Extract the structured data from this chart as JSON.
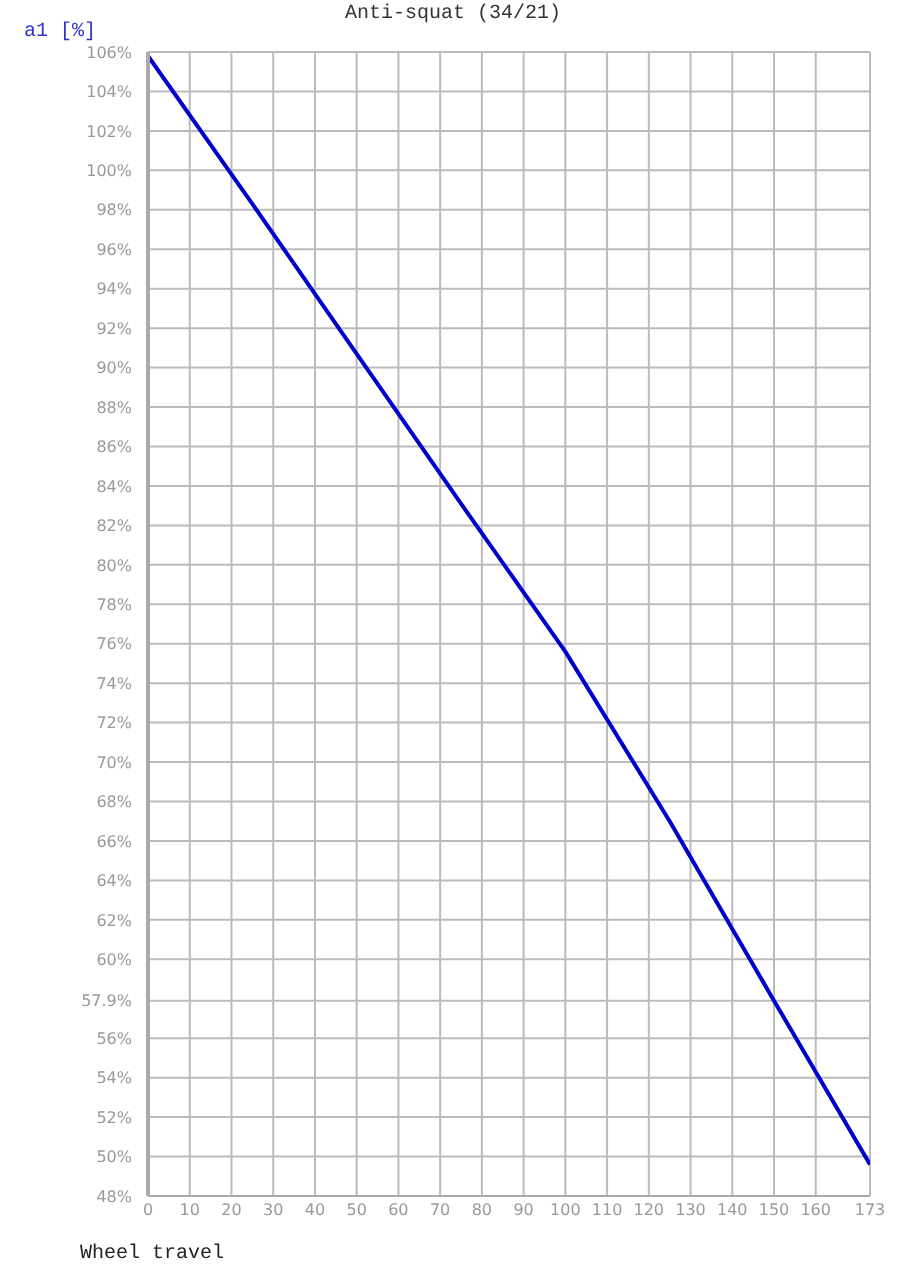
{
  "chart_data": {
    "type": "line",
    "title": "Anti-squat (34/21)",
    "xlabel": "Wheel travel",
    "ylabel": "a1 [%]",
    "x": [
      0,
      25,
      50,
      75,
      100,
      125,
      150,
      173
    ],
    "series": [
      {
        "color": "#0000cc",
        "values": [
          105.8,
          98.3,
          90.7,
          83.1,
          75.6,
          67.0,
          57.9,
          49.6
        ]
      }
    ],
    "xlim": [
      0,
      173
    ],
    "xticks": [
      0,
      10,
      20,
      30,
      40,
      50,
      60,
      70,
      80,
      90,
      100,
      110,
      120,
      130,
      140,
      150,
      160,
      173
    ],
    "ylim": [
      48,
      106
    ],
    "yticks": [
      {
        "value": 48,
        "label": "48%"
      },
      {
        "value": 50,
        "label": "50%"
      },
      {
        "value": 52,
        "label": "52%"
      },
      {
        "value": 54,
        "label": "54%"
      },
      {
        "value": 56,
        "label": "56%"
      },
      {
        "value": 57.9,
        "label": "57.9%"
      },
      {
        "value": 60,
        "label": "60%"
      },
      {
        "value": 62,
        "label": "62%"
      },
      {
        "value": 64,
        "label": "64%"
      },
      {
        "value": 66,
        "label": "66%"
      },
      {
        "value": 68,
        "label": "68%"
      },
      {
        "value": 70,
        "label": "70%"
      },
      {
        "value": 72,
        "label": "72%"
      },
      {
        "value": 74,
        "label": "74%"
      },
      {
        "value": 76,
        "label": "76%"
      },
      {
        "value": 78,
        "label": "78%"
      },
      {
        "value": 80,
        "label": "80%"
      },
      {
        "value": 82,
        "label": "82%"
      },
      {
        "value": 84,
        "label": "84%"
      },
      {
        "value": 86,
        "label": "86%"
      },
      {
        "value": 88,
        "label": "88%"
      },
      {
        "value": 90,
        "label": "90%"
      },
      {
        "value": 92,
        "label": "92%"
      },
      {
        "value": 94,
        "label": "94%"
      },
      {
        "value": 96,
        "label": "96%"
      },
      {
        "value": 98,
        "label": "98%"
      },
      {
        "value": 100,
        "label": "100%"
      },
      {
        "value": 102,
        "label": "102%"
      },
      {
        "value": 104,
        "label": "104%"
      },
      {
        "value": 106,
        "label": "106%"
      }
    ],
    "grid": true,
    "marker": "none",
    "line_style": "solid"
  }
}
